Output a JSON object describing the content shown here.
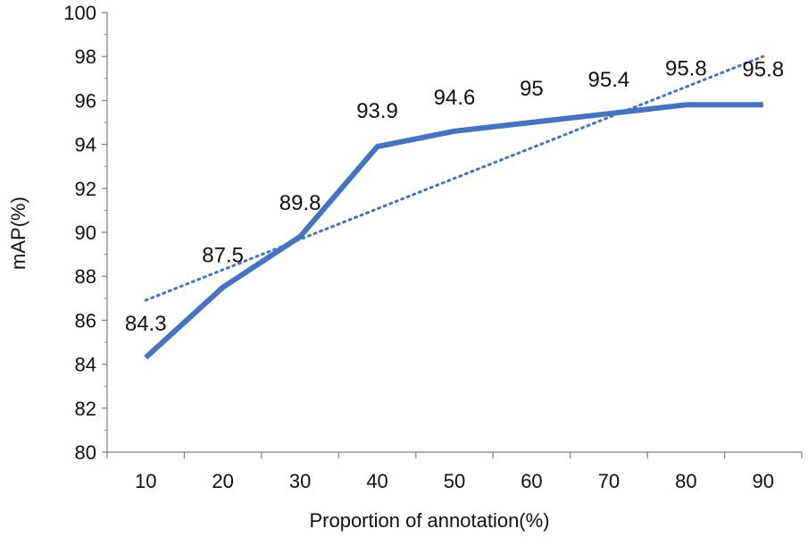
{
  "chart_data": {
    "type": "line",
    "title": "",
    "xlabel": "Proportion of annotation(%)",
    "ylabel": "mAP(%)",
    "categories": [
      "10",
      "20",
      "30",
      "40",
      "50",
      "60",
      "70",
      "80",
      "90"
    ],
    "series": [
      {
        "name": "mAP",
        "values": [
          84.3,
          87.5,
          89.8,
          93.9,
          94.6,
          95.0,
          95.4,
          95.8,
          95.8
        ],
        "color": "#4472C4"
      }
    ],
    "data_labels": [
      "84.3",
      "87.5",
      "89.8",
      "93.9",
      "94.6",
      "95",
      "95.4",
      "95.8",
      "95.8"
    ],
    "trendline": {
      "type": "linear",
      "style": "dotted",
      "color": "#4472C4"
    },
    "ylim": [
      80,
      100
    ],
    "ystep": 2,
    "y_ticks": [
      "80",
      "82",
      "84",
      "86",
      "88",
      "90",
      "92",
      "94",
      "96",
      "98",
      "100"
    ],
    "grid": false
  }
}
